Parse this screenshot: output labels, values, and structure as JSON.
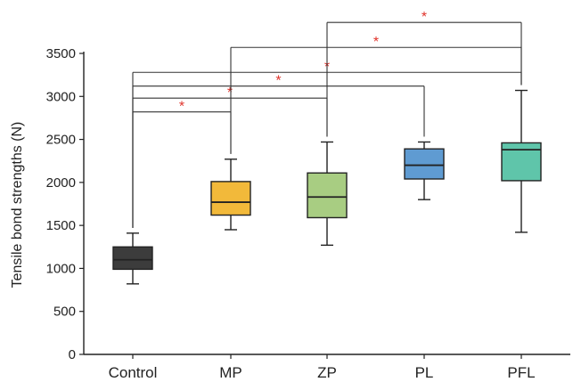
{
  "chart_data": {
    "type": "box",
    "ylabel": "Tensile bond strengths (N)",
    "xlabel": "",
    "ylim": [
      0,
      3500
    ],
    "yticks": [
      0,
      500,
      1000,
      1500,
      2000,
      2500,
      3000,
      3500
    ],
    "grid": false,
    "categories": [
      "Control",
      "MP",
      "ZP",
      "PL",
      "PFL"
    ],
    "boxes": [
      {
        "name": "Control",
        "min": 820,
        "q1": 990,
        "median": 1100,
        "q3": 1250,
        "max": 1410,
        "color": "#3c3c3c"
      },
      {
        "name": "MP",
        "min": 1450,
        "q1": 1620,
        "median": 1770,
        "q3": 2010,
        "max": 2270,
        "color": "#f2b93a"
      },
      {
        "name": "ZP",
        "min": 1270,
        "q1": 1590,
        "median": 1830,
        "q3": 2110,
        "max": 2470,
        "color": "#a8cd82"
      },
      {
        "name": "PL",
        "min": 1800,
        "q1": 2040,
        "median": 2200,
        "q3": 2390,
        "max": 2470,
        "color": "#5f9bd2"
      },
      {
        "name": "PFL",
        "min": 1420,
        "q1": 2020,
        "median": 2380,
        "q3": 2460,
        "max": 3070,
        "color": "#5fc5aa"
      }
    ],
    "significance": [
      {
        "from": "Control",
        "to": "MP",
        "level": 2820,
        "label": "*"
      },
      {
        "from": "Control",
        "to": "ZP",
        "level": 2980,
        "label": "*"
      },
      {
        "from": "Control",
        "to": "PL",
        "level": 3120,
        "label": "*"
      },
      {
        "from": "Control",
        "to": "PFL",
        "level": 3280,
        "label": "*"
      },
      {
        "from": "MP",
        "to": "PFL",
        "level": 3570,
        "label": "*"
      },
      {
        "from": "ZP",
        "to": "PFL",
        "level": 3860,
        "label": "*"
      }
    ]
  }
}
